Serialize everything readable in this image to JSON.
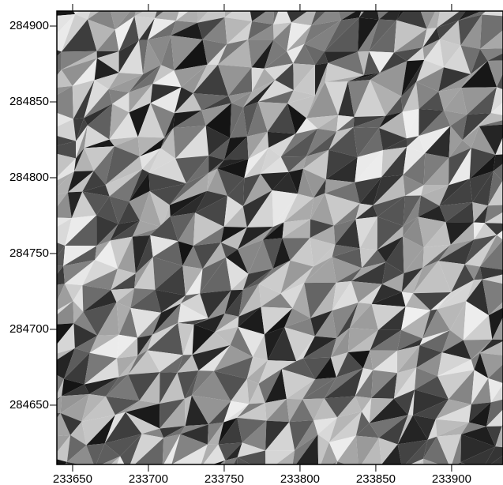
{
  "map": {
    "type": "hillshade",
    "xlim": [
      233639.6,
      233933.9
    ],
    "ylim": [
      284610.9,
      284909.9
    ],
    "xticks": [
      233650,
      233700,
      233750,
      233800,
      233850,
      233900
    ],
    "yticks": [
      284650,
      284700,
      284750,
      284800,
      284850,
      284900
    ]
  }
}
